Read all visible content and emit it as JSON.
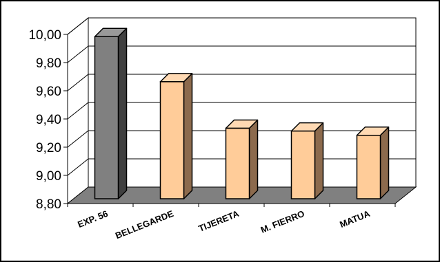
{
  "chart_data": {
    "type": "bar",
    "style": "3d-column",
    "title": "",
    "xlabel": "",
    "ylabel": "",
    "categories": [
      "EXP. 56",
      "BELLEGARDE",
      "TIJERETA",
      "M. FIERRO",
      "MATUA"
    ],
    "values": [
      9.95,
      9.63,
      9.3,
      9.28,
      9.25
    ],
    "highlight_index": 0,
    "ylim": [
      8.8,
      10.0
    ],
    "yticks": [
      "8,80",
      "9,00",
      "9,20",
      "9,40",
      "9,60",
      "9,80",
      "10,00"
    ],
    "grid": true,
    "legend": "none",
    "colors": {
      "bar": "#ffcc99",
      "bar_side": "#8c6a4d",
      "bar_top": "#ffd9b3",
      "highlight": "#808080",
      "highlight_side": "#404040",
      "highlight_top": "#999999",
      "floor": "#808080",
      "wall": "#ffffff",
      "grid": "#000000"
    }
  }
}
